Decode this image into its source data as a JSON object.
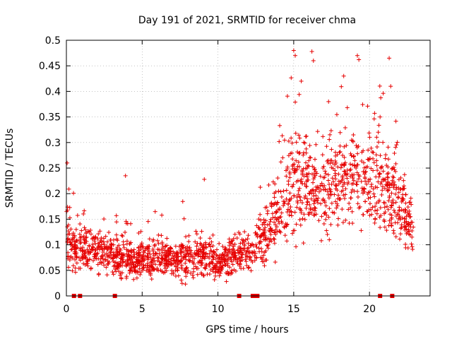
{
  "chart_data": {
    "type": "scatter",
    "title": "Day 191 of 2021, SRMTID for receiver chma",
    "xlabel": "GPS time / hours",
    "ylabel": "SRMTID / TECUs",
    "xlim": [
      0,
      24
    ],
    "ylim": [
      0,
      0.5
    ],
    "xticks": [
      0,
      5,
      10,
      15,
      20
    ],
    "xtick_labels": [
      "0",
      "5",
      "10",
      "15",
      "20"
    ],
    "yticks": [
      0,
      0.05,
      0.1,
      0.15,
      0.2,
      0.25,
      0.3,
      0.35,
      0.4,
      0.45,
      0.5
    ],
    "ytick_labels": [
      "0",
      "0.05",
      "0.1",
      "0.15",
      "0.2",
      "0.25",
      "0.3",
      "0.35",
      "0.4",
      "0.45",
      "0.5"
    ],
    "grid": true,
    "marker": "+",
    "color": "#e60000",
    "series": [
      {
        "name": "SRMTID",
        "envelope": [
          {
            "x": 0.0,
            "mean": 0.12,
            "spread": 0.06
          },
          {
            "x": 0.5,
            "mean": 0.09,
            "spread": 0.04
          },
          {
            "x": 1.0,
            "mean": 0.09,
            "spread": 0.04
          },
          {
            "x": 2.0,
            "mean": 0.085,
            "spread": 0.035
          },
          {
            "x": 3.0,
            "mean": 0.08,
            "spread": 0.035
          },
          {
            "x": 4.0,
            "mean": 0.075,
            "spread": 0.035
          },
          {
            "x": 5.0,
            "mean": 0.07,
            "spread": 0.03
          },
          {
            "x": 6.0,
            "mean": 0.075,
            "spread": 0.035
          },
          {
            "x": 7.0,
            "mean": 0.07,
            "spread": 0.03
          },
          {
            "x": 8.0,
            "mean": 0.075,
            "spread": 0.035
          },
          {
            "x": 9.0,
            "mean": 0.08,
            "spread": 0.035
          },
          {
            "x": 10.0,
            "mean": 0.065,
            "spread": 0.03
          },
          {
            "x": 11.0,
            "mean": 0.08,
            "spread": 0.035
          },
          {
            "x": 12.0,
            "mean": 0.085,
            "spread": 0.035
          },
          {
            "x": 13.0,
            "mean": 0.11,
            "spread": 0.045
          },
          {
            "x": 14.0,
            "mean": 0.16,
            "spread": 0.07
          },
          {
            "x": 15.0,
            "mean": 0.22,
            "spread": 0.09
          },
          {
            "x": 16.0,
            "mean": 0.22,
            "spread": 0.09
          },
          {
            "x": 17.0,
            "mean": 0.2,
            "spread": 0.08
          },
          {
            "x": 18.0,
            "mean": 0.23,
            "spread": 0.09
          },
          {
            "x": 19.0,
            "mean": 0.24,
            "spread": 0.09
          },
          {
            "x": 20.0,
            "mean": 0.22,
            "spread": 0.08
          },
          {
            "x": 21.0,
            "mean": 0.21,
            "spread": 0.08
          },
          {
            "x": 22.0,
            "mean": 0.18,
            "spread": 0.07
          },
          {
            "x": 22.8,
            "mean": 0.12,
            "spread": 0.05
          }
        ],
        "x_end": 22.9,
        "outliers": [
          {
            "x": 0.05,
            "y": 0.26
          },
          {
            "x": 3.9,
            "y": 0.235
          },
          {
            "x": 9.1,
            "y": 0.228
          },
          {
            "x": 15.0,
            "y": 0.48
          },
          {
            "x": 15.1,
            "y": 0.47
          },
          {
            "x": 16.2,
            "y": 0.478
          },
          {
            "x": 16.3,
            "y": 0.46
          },
          {
            "x": 18.3,
            "y": 0.43
          },
          {
            "x": 19.2,
            "y": 0.47
          },
          {
            "x": 19.3,
            "y": 0.462
          },
          {
            "x": 21.3,
            "y": 0.465
          },
          {
            "x": 21.4,
            "y": 0.41
          },
          {
            "x": 15.5,
            "y": 0.42
          },
          {
            "x": 17.3,
            "y": 0.38
          },
          {
            "x": 20.7,
            "y": 0.35
          }
        ]
      },
      {
        "name": "data gaps",
        "x": [
          0.5,
          0.9,
          3.2,
          11.4,
          12.3,
          12.5,
          12.6,
          20.7,
          21.5
        ],
        "y": [
          0,
          0,
          0,
          0,
          0,
          0,
          0,
          0,
          0
        ]
      }
    ]
  }
}
